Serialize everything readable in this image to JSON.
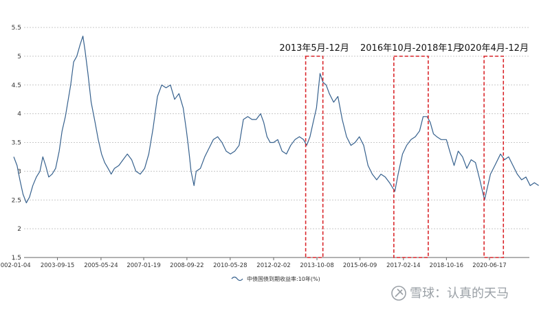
{
  "chart_data": {
    "type": "line",
    "title": "",
    "xlabel": "",
    "ylabel": "",
    "ylim": [
      1.5,
      5.5
    ],
    "y_ticks": [
      1.5,
      2,
      2.5,
      3,
      3.5,
      4,
      4.5,
      5,
      5.5
    ],
    "x_tick_labels": [
      "2002-01-04",
      "2003-09-15",
      "2005-05-24",
      "2007-01-19",
      "2008-09-22",
      "2010-05-28",
      "2012-02-02",
      "2013-10-08",
      "2015-06-09",
      "2017-02-14",
      "2018-10-16",
      "2020-06-17"
    ],
    "grid": "horizontal dashed",
    "legend_placement": "bottom-center",
    "series": [
      {
        "name": "中债国债到期收益率:10年(%)",
        "color": "#35608d",
        "points": [
          [
            "2002-01-04",
            3.25
          ],
          [
            "2002-02-20",
            3.1
          ],
          [
            "2002-04-01",
            2.85
          ],
          [
            "2002-05-15",
            2.6
          ],
          [
            "2002-07-01",
            2.45
          ],
          [
            "2002-08-15",
            2.55
          ],
          [
            "2002-10-01",
            2.75
          ],
          [
            "2002-11-20",
            2.9
          ],
          [
            "2003-01-10",
            3.0
          ],
          [
            "2003-02-20",
            3.25
          ],
          [
            "2003-04-01",
            3.1
          ],
          [
            "2003-05-15",
            2.9
          ],
          [
            "2003-07-01",
            2.95
          ],
          [
            "2003-08-20",
            3.05
          ],
          [
            "2003-10-10",
            3.35
          ],
          [
            "2003-11-20",
            3.7
          ],
          [
            "2004-01-05",
            3.95
          ],
          [
            "2004-02-15",
            4.25
          ],
          [
            "2004-03-20",
            4.5
          ],
          [
            "2004-05-01",
            4.9
          ],
          [
            "2004-06-15",
            5.0
          ],
          [
            "2004-08-01",
            5.2
          ],
          [
            "2004-09-10",
            5.35
          ],
          [
            "2004-10-10",
            5.1
          ],
          [
            "2004-11-20",
            4.7
          ],
          [
            "2005-01-05",
            4.2
          ],
          [
            "2005-03-01",
            3.85
          ],
          [
            "2005-04-15",
            3.55
          ],
          [
            "2005-06-01",
            3.3
          ],
          [
            "2005-07-15",
            3.15
          ],
          [
            "2005-09-01",
            3.05
          ],
          [
            "2005-10-15",
            2.95
          ],
          [
            "2005-12-01",
            3.05
          ],
          [
            "2006-02-01",
            3.1
          ],
          [
            "2006-04-01",
            3.2
          ],
          [
            "2006-06-01",
            3.3
          ],
          [
            "2006-08-01",
            3.2
          ],
          [
            "2006-10-01",
            3.0
          ],
          [
            "2006-12-01",
            2.95
          ],
          [
            "2007-02-01",
            3.05
          ],
          [
            "2007-04-01",
            3.3
          ],
          [
            "2007-06-01",
            3.75
          ],
          [
            "2007-08-01",
            4.3
          ],
          [
            "2007-10-01",
            4.5
          ],
          [
            "2007-12-01",
            4.45
          ],
          [
            "2008-02-01",
            4.5
          ],
          [
            "2008-04-01",
            4.25
          ],
          [
            "2008-06-01",
            4.35
          ],
          [
            "2008-08-01",
            4.1
          ],
          [
            "2008-09-15",
            3.7
          ],
          [
            "2008-10-15",
            3.4
          ],
          [
            "2008-11-20",
            3.0
          ],
          [
            "2008-12-31",
            2.75
          ],
          [
            "2009-02-01",
            3.0
          ],
          [
            "2009-04-01",
            3.05
          ],
          [
            "2009-06-01",
            3.25
          ],
          [
            "2009-08-01",
            3.4
          ],
          [
            "2009-10-01",
            3.55
          ],
          [
            "2009-12-01",
            3.6
          ],
          [
            "2010-02-01",
            3.5
          ],
          [
            "2010-04-01",
            3.35
          ],
          [
            "2010-06-01",
            3.3
          ],
          [
            "2010-08-01",
            3.35
          ],
          [
            "2010-10-01",
            3.45
          ],
          [
            "2010-12-01",
            3.9
          ],
          [
            "2011-02-01",
            3.95
          ],
          [
            "2011-04-01",
            3.9
          ],
          [
            "2011-06-01",
            3.9
          ],
          [
            "2011-08-01",
            4.0
          ],
          [
            "2011-09-15",
            3.85
          ],
          [
            "2011-11-01",
            3.6
          ],
          [
            "2011-12-15",
            3.5
          ],
          [
            "2012-02-01",
            3.5
          ],
          [
            "2012-04-01",
            3.55
          ],
          [
            "2012-06-01",
            3.35
          ],
          [
            "2012-08-01",
            3.3
          ],
          [
            "2012-10-01",
            3.45
          ],
          [
            "2012-12-01",
            3.55
          ],
          [
            "2013-02-01",
            3.6
          ],
          [
            "2013-04-01",
            3.55
          ],
          [
            "2013-05-15",
            3.45
          ],
          [
            "2013-07-01",
            3.6
          ],
          [
            "2013-08-15",
            3.85
          ],
          [
            "2013-10-01",
            4.1
          ],
          [
            "2013-11-20",
            4.7
          ],
          [
            "2013-12-31",
            4.55
          ],
          [
            "2014-02-15",
            4.5
          ],
          [
            "2014-04-01",
            4.35
          ],
          [
            "2014-06-01",
            4.2
          ],
          [
            "2014-08-01",
            4.3
          ],
          [
            "2014-10-01",
            3.9
          ],
          [
            "2014-12-01",
            3.6
          ],
          [
            "2015-02-01",
            3.45
          ],
          [
            "2015-04-01",
            3.5
          ],
          [
            "2015-06-01",
            3.6
          ],
          [
            "2015-08-01",
            3.45
          ],
          [
            "2015-10-01",
            3.1
          ],
          [
            "2015-12-01",
            2.95
          ],
          [
            "2016-02-01",
            2.85
          ],
          [
            "2016-04-01",
            2.95
          ],
          [
            "2016-06-01",
            2.9
          ],
          [
            "2016-08-01",
            2.8
          ],
          [
            "2016-10-15",
            2.65
          ],
          [
            "2016-12-01",
            2.95
          ],
          [
            "2017-02-01",
            3.3
          ],
          [
            "2017-04-01",
            3.45
          ],
          [
            "2017-06-01",
            3.55
          ],
          [
            "2017-08-01",
            3.6
          ],
          [
            "2017-10-01",
            3.7
          ],
          [
            "2017-11-20",
            3.95
          ],
          [
            "2018-01-15",
            3.95
          ],
          [
            "2018-03-01",
            3.85
          ],
          [
            "2018-04-15",
            3.65
          ],
          [
            "2018-06-01",
            3.6
          ],
          [
            "2018-08-01",
            3.55
          ],
          [
            "2018-10-15",
            3.55
          ],
          [
            "2018-12-01",
            3.35
          ],
          [
            "2019-02-01",
            3.1
          ],
          [
            "2019-04-01",
            3.35
          ],
          [
            "2019-06-01",
            3.25
          ],
          [
            "2019-08-01",
            3.05
          ],
          [
            "2019-10-01",
            3.2
          ],
          [
            "2019-12-01",
            3.15
          ],
          [
            "2020-02-01",
            2.85
          ],
          [
            "2020-04-08",
            2.5
          ],
          [
            "2020-05-15",
            2.7
          ],
          [
            "2020-07-01",
            2.95
          ],
          [
            "2020-09-01",
            3.1
          ],
          [
            "2020-11-20",
            3.3
          ],
          [
            "2021-01-15",
            3.2
          ],
          [
            "2021-03-15",
            3.25
          ],
          [
            "2021-05-15",
            3.1
          ],
          [
            "2021-07-15",
            2.95
          ],
          [
            "2021-09-15",
            2.85
          ],
          [
            "2021-11-15",
            2.9
          ],
          [
            "2022-01-15",
            2.75
          ],
          [
            "2022-03-15",
            2.8
          ],
          [
            "2022-05-15",
            2.75
          ]
        ]
      }
    ],
    "highlights": [
      {
        "label": "2013年5月-12月",
        "start": "2013-05-01",
        "end": "2013-12-31",
        "color": "#d9252a"
      },
      {
        "label": "2016年10月-2018年1月",
        "start": "2016-10-01",
        "end": "2018-01-31",
        "color": "#d9252a"
      },
      {
        "label": "2020年4月-12月",
        "start": "2020-04-01",
        "end": "2020-12-31",
        "color": "#d9252a"
      }
    ]
  },
  "watermark": {
    "text": "雪球：认真的天马",
    "icon": "xueqiu-snowball-icon"
  }
}
